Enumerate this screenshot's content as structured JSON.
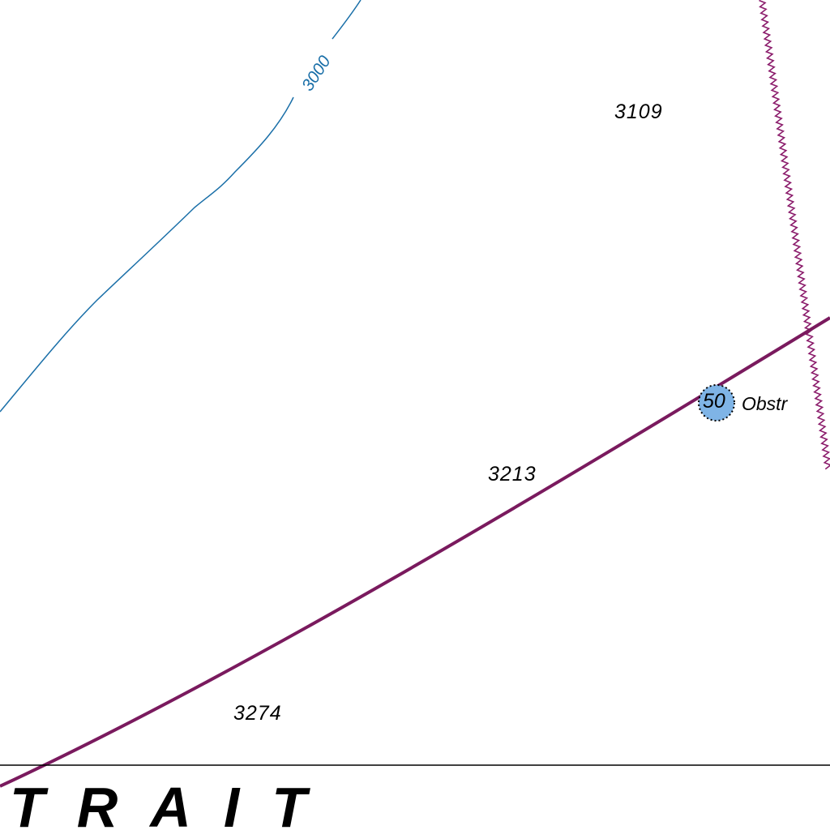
{
  "map": {
    "colors": {
      "background": "#ffffff",
      "contour": "#1a6fa8",
      "route": "#7a1a5e",
      "boundary": "#8a1a6a",
      "obstruction_fill": "#7fb4e6",
      "text": "#000000"
    },
    "contour": {
      "label": "3000"
    },
    "soundings": [
      {
        "value": "3109"
      },
      {
        "value": "3213"
      },
      {
        "value": "3274"
      }
    ],
    "obstruction": {
      "depth": "50",
      "label": "Obstr"
    },
    "place_name": "TRAIT"
  }
}
